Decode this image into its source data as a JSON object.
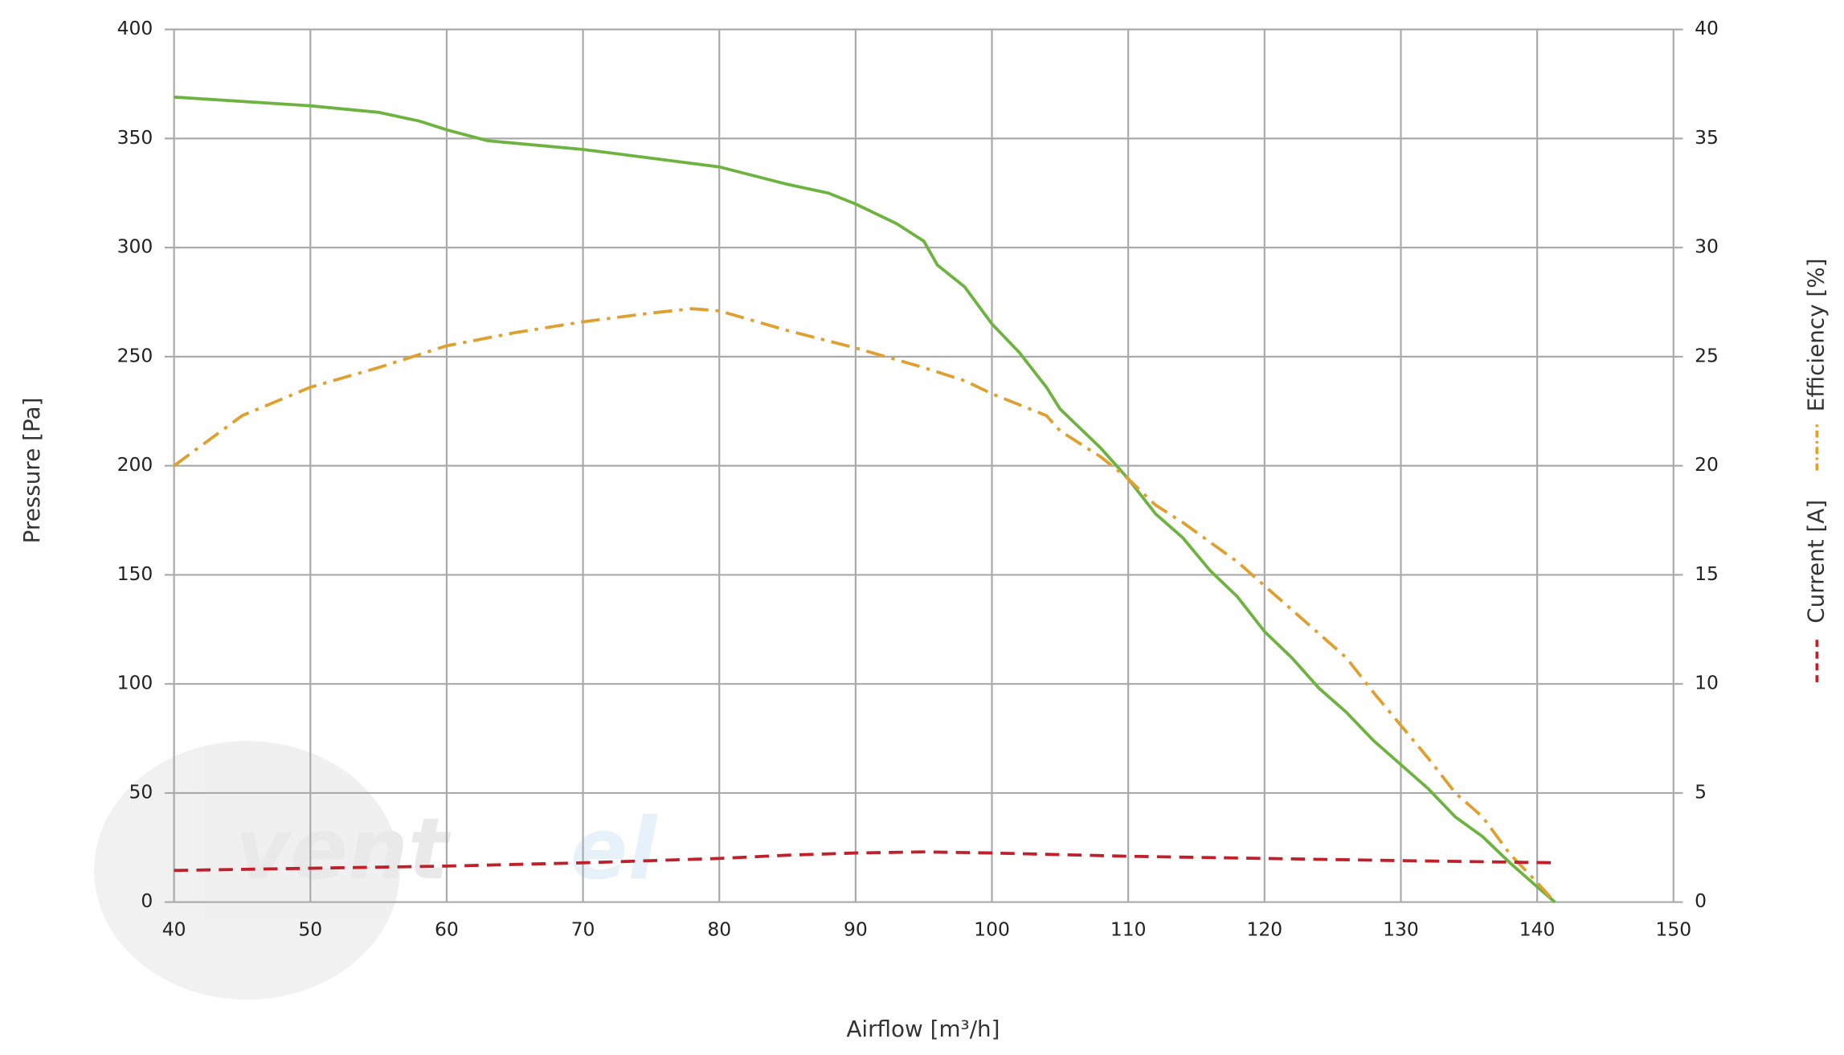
{
  "chart_data": {
    "type": "line",
    "x_label": "Airflow [m³/h]",
    "y_label": "Pressure [Pa]",
    "xlim": [
      40,
      150
    ],
    "xticks": [
      40,
      50,
      60,
      70,
      80,
      90,
      100,
      110,
      120,
      130,
      140,
      150
    ],
    "ylim": [
      0,
      400
    ],
    "yticks": [
      0,
      50,
      100,
      150,
      200,
      250,
      300,
      350,
      400
    ],
    "y2lim": [
      0,
      40
    ],
    "y2ticks": [
      0,
      5,
      10,
      15,
      20,
      25,
      30,
      35,
      40
    ],
    "grid": true,
    "legend": "right",
    "series": [
      {
        "color": "#6db33f",
        "dash": "solid",
        "legend": false,
        "x": [
          40,
          50,
          55,
          58,
          60,
          63,
          70,
          80,
          85,
          88,
          90,
          93,
          95,
          96,
          98,
          100,
          102,
          104,
          105,
          108,
          110,
          112,
          114,
          116,
          118,
          120,
          122,
          124,
          126,
          128,
          130,
          132,
          134,
          136,
          138,
          140,
          141.3
        ],
        "values": [
          369,
          365,
          362,
          358,
          354,
          349,
          345,
          337,
          329,
          325,
          320,
          311,
          303,
          292,
          282,
          265,
          252,
          236,
          226,
          208,
          194,
          178,
          167,
          152,
          140,
          124,
          112,
          98,
          87,
          74,
          63,
          52,
          39,
          30,
          18,
          7,
          0
        ]
      },
      {
        "name": "Efficiency [%]",
        "color": "#e0a030",
        "dash": "dashdot",
        "axis": "y2",
        "x": [
          40,
          45,
          50,
          55,
          60,
          65,
          70,
          75,
          78,
          80,
          85,
          90,
          95,
          98,
          100,
          104,
          105,
          108,
          110,
          112,
          114,
          118,
          120,
          124,
          126,
          128,
          130,
          132,
          134,
          136,
          138,
          140,
          141.3
        ],
        "values": [
          20,
          22.3,
          23.6,
          24.5,
          25.5,
          26.1,
          26.6,
          27.0,
          27.2,
          27.1,
          26.2,
          25.4,
          24.5,
          23.9,
          23.3,
          22.3,
          21.6,
          20.4,
          19.4,
          18.2,
          17.4,
          15.6,
          14.5,
          12.3,
          11.2,
          9.6,
          8.1,
          6.6,
          5.0,
          3.9,
          2.2,
          0.9,
          0
        ]
      },
      {
        "name": "Current [A]",
        "color": "#c0202a",
        "dash": "dashed",
        "axis": "y2",
        "x": [
          40,
          50,
          60,
          70,
          80,
          85,
          90,
          95,
          100,
          110,
          120,
          130,
          141.5
        ],
        "values": [
          1.45,
          1.55,
          1.65,
          1.8,
          2.0,
          2.15,
          2.25,
          2.3,
          2.25,
          2.1,
          2.0,
          1.9,
          1.8
        ]
      }
    ]
  }
}
